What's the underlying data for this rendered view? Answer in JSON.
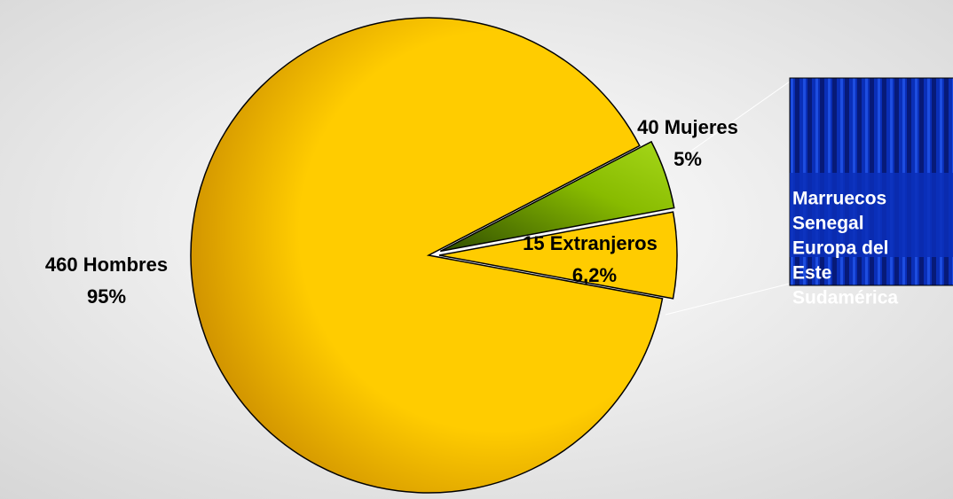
{
  "chart_data": {
    "type": "pie",
    "categories": [
      "460 Hombres",
      "40 Mujeres",
      "15 Extranjeros"
    ],
    "values": [
      95,
      5,
      6.2
    ],
    "value_labels": [
      "95%",
      "5%",
      "6,2%"
    ],
    "colors": [
      "#ffcc00",
      "#99cc00",
      "#ffcc00"
    ],
    "callout": {
      "items": [
        "Marruecos",
        "Senegal",
        "Europa del",
        "Este",
        "Sudamérica"
      ]
    }
  }
}
